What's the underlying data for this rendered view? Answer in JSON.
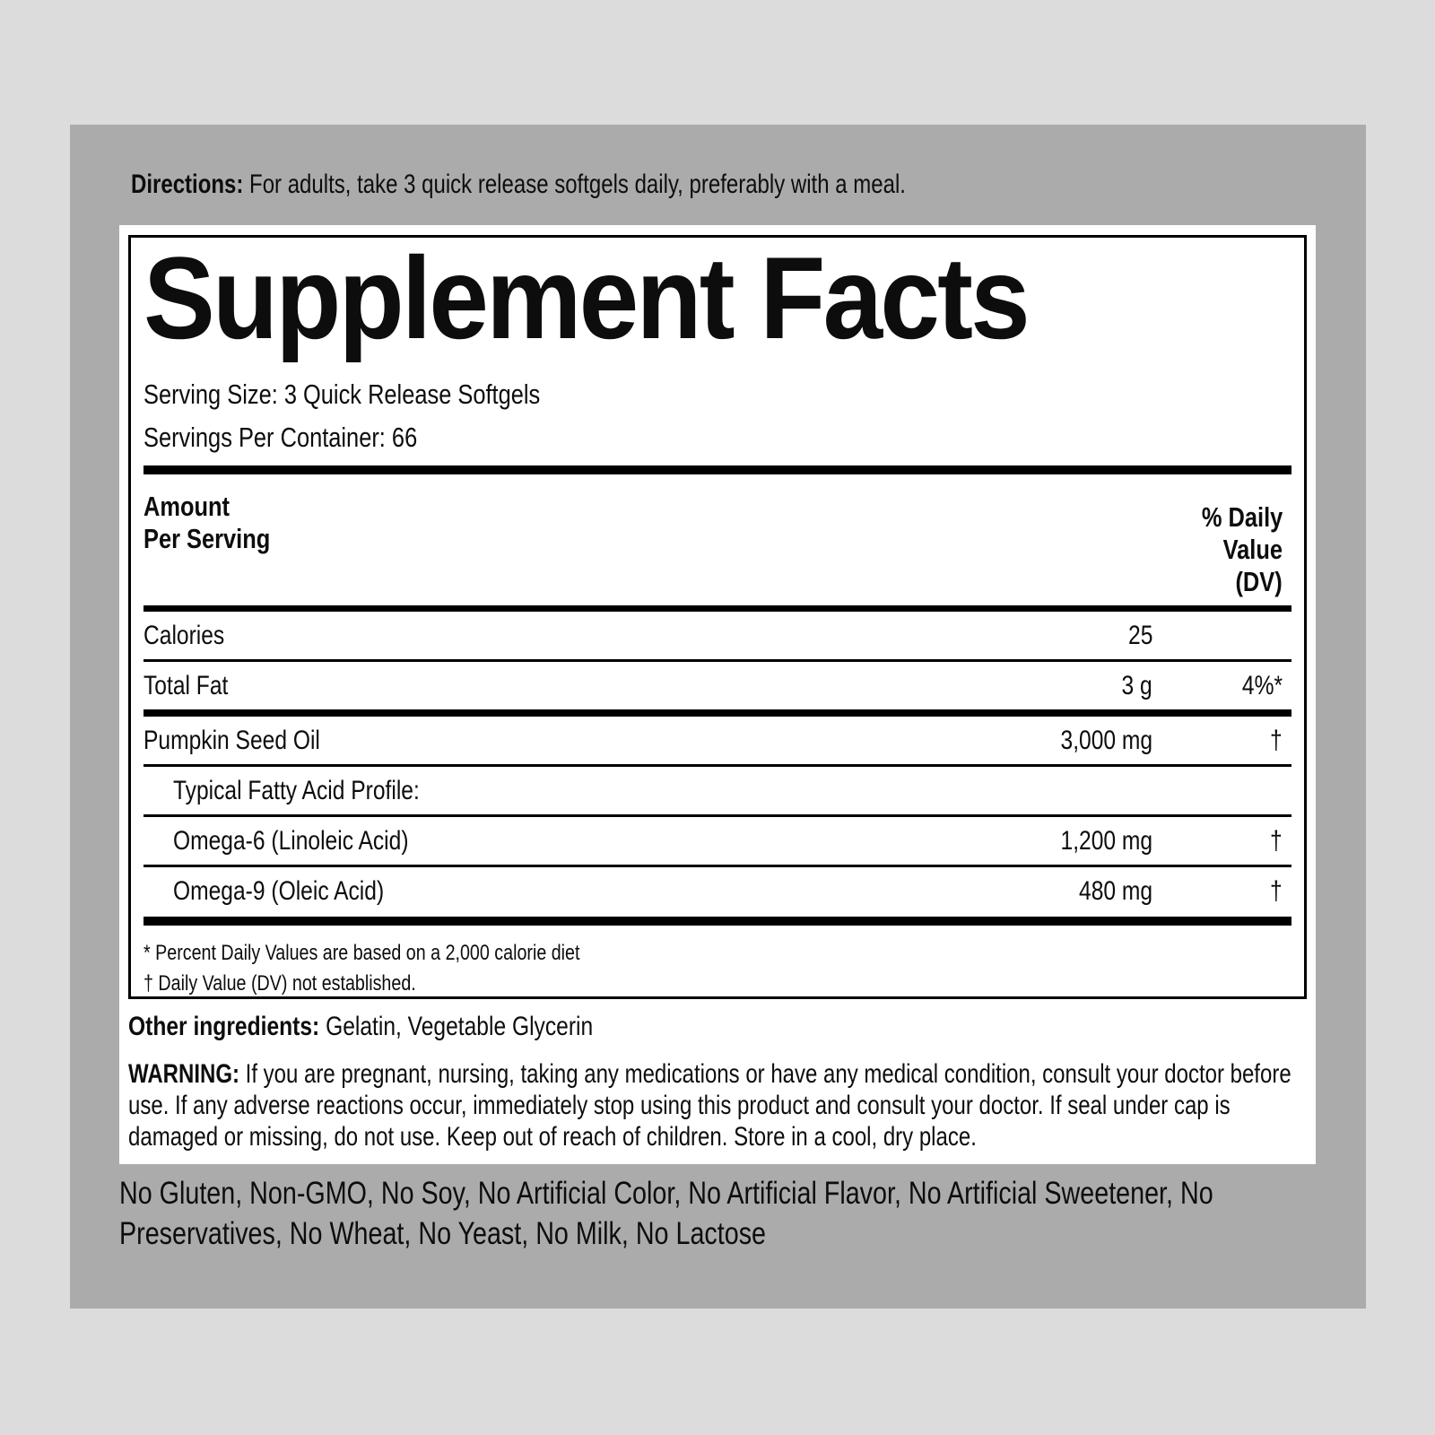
{
  "colors": {
    "outer_bg": "#dcdcdc",
    "panel_bg": "#ababab",
    "label_bg": "#ffffff",
    "text": "#0d0d0d"
  },
  "directions": {
    "label": "Directions:",
    "text": "For adults, take 3 quick release softgels daily, preferably with a meal."
  },
  "supplement_facts": {
    "title": "Supplement Facts",
    "serving_size": "Serving Size: 3 Quick Release Softgels",
    "servings_per_container": "Servings Per Container: 66",
    "header": {
      "amount_line1": "Amount",
      "amount_line2": "Per Serving",
      "dv_line1": "% Daily",
      "dv_line2": "Value",
      "dv_line3": "(DV)"
    },
    "rows": [
      {
        "name": "Calories",
        "amount": "25",
        "dv": "",
        "indent": false,
        "rule_below": "thin"
      },
      {
        "name": "Total Fat",
        "amount": "3 g",
        "dv": "4%*",
        "indent": false,
        "rule_below": "medium"
      },
      {
        "name": "Pumpkin Seed Oil",
        "amount": "3,000 mg",
        "dv": "†",
        "indent": false,
        "rule_below": "thin"
      },
      {
        "name": "Typical Fatty Acid Profile:",
        "amount": "",
        "dv": "",
        "indent": true,
        "rule_below": "thin"
      },
      {
        "name": "Omega-6 (Linoleic Acid)",
        "amount": "1,200 mg",
        "dv": "†",
        "indent": true,
        "rule_below": "thin"
      },
      {
        "name": "Omega-9 (Oleic Acid)",
        "amount": "480 mg",
        "dv": "†",
        "indent": true,
        "rule_below": "none"
      }
    ],
    "footnotes": [
      "* Percent Daily Values are based on a 2,000 calorie diet",
      "† Daily Value (DV) not established."
    ]
  },
  "other_ingredients": {
    "label": "Other ingredients:",
    "text": "Gelatin, Vegetable Glycerin"
  },
  "warning": {
    "label": "WARNING:",
    "lines": [
      "If you are pregnant, nursing, taking any medications or have any medical condition, consult your doctor before",
      "use. If any adverse reactions occur, immediately stop using this product and consult your doctor. If seal under cap is",
      "damaged or missing, do not use. Keep out of reach of children. Store in a cool, dry place."
    ]
  },
  "claims": {
    "lines": [
      "No Gluten, Non-GMO, No Soy, No Artificial Color, No Artificial Flavor, No Artificial Sweetener, No",
      "Preservatives, No Wheat, No Yeast, No Milk, No Lactose"
    ]
  }
}
